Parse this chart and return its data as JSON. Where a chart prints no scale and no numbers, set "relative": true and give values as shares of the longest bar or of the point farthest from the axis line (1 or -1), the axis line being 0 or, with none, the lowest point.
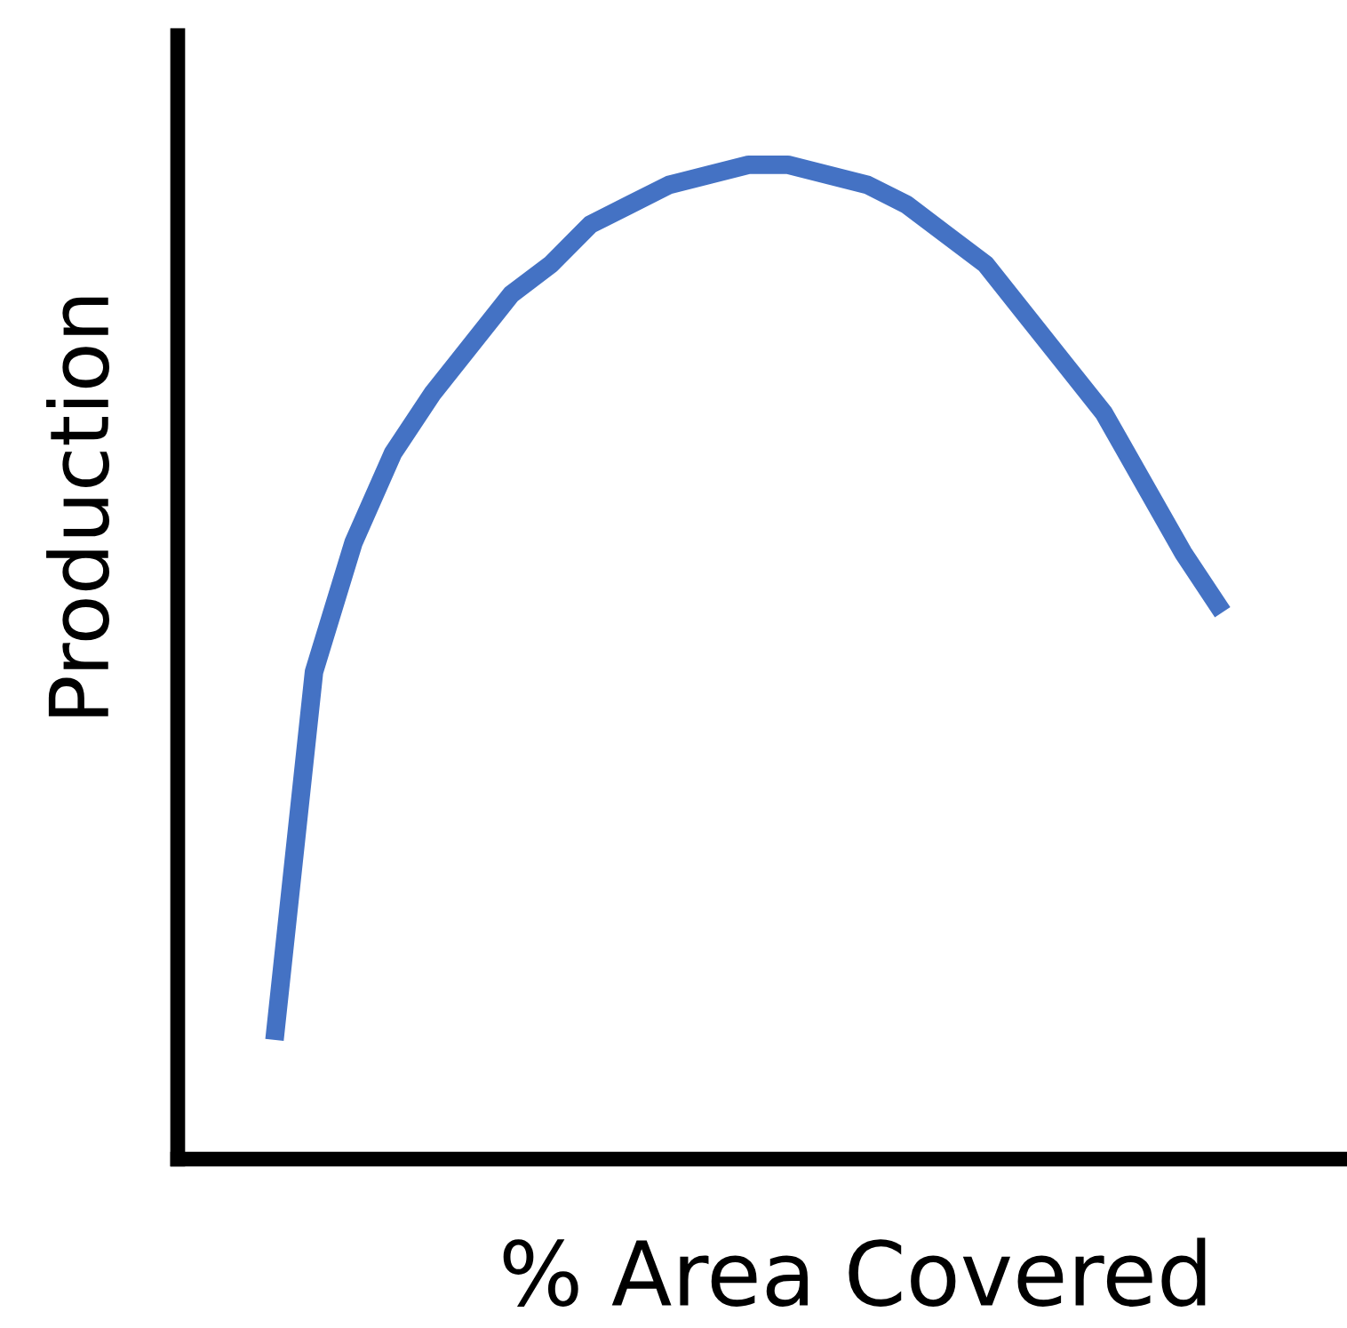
{
  "chart_data": {
    "type": "line",
    "relative": true,
    "xlabel": "% Area Covered",
    "ylabel": "Production",
    "categories": [
      null,
      null,
      null,
      null,
      null,
      null,
      null,
      null,
      null,
      null,
      null,
      null,
      null,
      null,
      null,
      null,
      null,
      null,
      null,
      null,
      null,
      null,
      null,
      null,
      null
    ],
    "series": [
      {
        "color": "#4472c4",
        "values": [
          0.12,
          0.49,
          0.62,
          0.71,
          0.77,
          0.82,
          0.87,
          0.9,
          0.94,
          0.96,
          0.98,
          0.99,
          1.0,
          1.0,
          0.99,
          0.98,
          0.96,
          0.93,
          0.9,
          0.85,
          0.8,
          0.75,
          0.68,
          0.61,
          0.55
        ]
      }
    ],
    "grid": false,
    "legend": false
  }
}
